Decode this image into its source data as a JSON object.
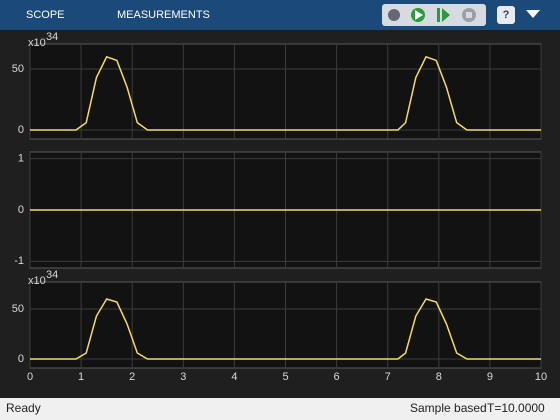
{
  "toolbar": {
    "tabs": [
      "SCOPE",
      "MEASUREMENTS"
    ]
  },
  "status_bar": {
    "state": "Ready",
    "mode": "Sample based",
    "time": "T=10.0000"
  },
  "chart_data": [
    {
      "type": "line",
      "x": [
        0,
        0.9,
        1.1,
        1.3,
        1.5,
        1.7,
        1.9,
        2.1,
        2.3,
        7.2,
        7.35,
        7.55,
        7.75,
        7.95,
        8.15,
        8.35,
        8.55,
        10
      ],
      "series": [
        {
          "color": "#f6d96b",
          "values": [
            0,
            0,
            6,
            43,
            60,
            57,
            35,
            6,
            0,
            0,
            6,
            43,
            60,
            57,
            35,
            6,
            0,
            0
          ]
        }
      ],
      "xlim": [
        0,
        10
      ],
      "xticks": [
        0,
        1,
        2,
        3,
        4,
        5,
        6,
        7,
        8,
        9,
        10
      ],
      "xtick_labels": false,
      "ylim": [
        -7.4,
        70.5
      ],
      "yticks": [
        0,
        50
      ],
      "grid": true,
      "y_multiplier": {
        "base": "x10",
        "exponent": "34"
      }
    },
    {
      "type": "line",
      "x": [
        0,
        10
      ],
      "series": [
        {
          "color": "#f6d96b",
          "values": [
            0,
            0
          ]
        }
      ],
      "xlim": [
        0,
        10
      ],
      "xticks": [
        0,
        1,
        2,
        3,
        4,
        5,
        6,
        7,
        8,
        9,
        10
      ],
      "xtick_labels": false,
      "ylim": [
        -1.13,
        1.13
      ],
      "yticks": [
        -1,
        0,
        1
      ],
      "grid": true
    },
    {
      "type": "line",
      "x": [
        0,
        0.9,
        1.1,
        1.3,
        1.5,
        1.7,
        1.9,
        2.1,
        2.3,
        7.2,
        7.35,
        7.55,
        7.75,
        7.95,
        8.15,
        8.35,
        8.55,
        10
      ],
      "series": [
        {
          "color": "#f6d96b",
          "values": [
            0,
            0,
            6,
            43,
            60,
            57,
            35,
            6,
            0,
            0,
            6,
            43,
            60,
            57,
            35,
            6,
            0,
            0
          ]
        }
      ],
      "xlim": [
        0,
        10
      ],
      "xticks": [
        0,
        1,
        2,
        3,
        4,
        5,
        6,
        7,
        8,
        9,
        10
      ],
      "xtick_labels": true,
      "ylim": [
        -9,
        77
      ],
      "yticks": [
        0,
        50
      ],
      "grid": true,
      "y_multiplier": {
        "base": "x10",
        "exponent": "34"
      }
    }
  ]
}
